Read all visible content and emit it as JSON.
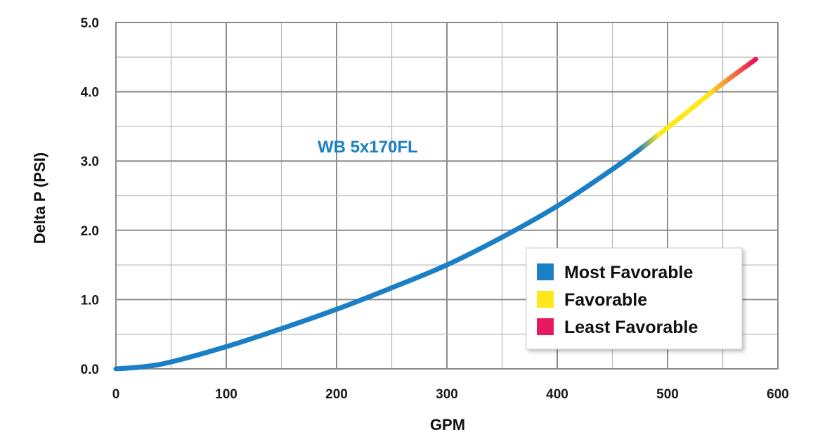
{
  "chart_data": {
    "type": "line",
    "title": "",
    "xlabel": "GPM",
    "ylabel": "Delta P (PSI)",
    "xlim": [
      0,
      600
    ],
    "ylim": [
      0,
      5
    ],
    "x_ticks": [
      "0",
      "100",
      "200",
      "300",
      "400",
      "500",
      "600"
    ],
    "y_ticks": [
      "0.0",
      "1.0",
      "2.0",
      "3.0",
      "4.0",
      "5.0"
    ],
    "grid": true,
    "annotation": {
      "text": "WB 5x170FL",
      "color": "#1a7fc4"
    },
    "series": [
      {
        "name": "WB 5x170FL",
        "x": [
          0,
          25,
          50,
          100,
          150,
          200,
          250,
          300,
          350,
          400,
          450,
          475,
          500,
          525,
          550,
          580
        ],
        "y": [
          0,
          0.03,
          0.1,
          0.32,
          0.58,
          0.86,
          1.17,
          1.5,
          1.9,
          2.35,
          2.88,
          3.17,
          3.48,
          3.8,
          4.12,
          4.47
        ]
      }
    ],
    "zones": [
      {
        "label": "Most Favorable",
        "color": "#1a7fc4",
        "x_from": 0,
        "x_to": 475
      },
      {
        "label": "Favorable",
        "color": "#ffe81a",
        "x_from": 500,
        "x_to": 550
      },
      {
        "label": "Least Favorable",
        "color": "#e8185e",
        "x_from": 575,
        "x_to": 580
      }
    ],
    "legend": {
      "placement": "bottom-right",
      "items": [
        {
          "label": "Most Favorable",
          "color": "#1a7fc4"
        },
        {
          "label": "Favorable",
          "color": "#ffe81a"
        },
        {
          "label": "Least Favorable",
          "color": "#e8185e"
        }
      ]
    }
  }
}
